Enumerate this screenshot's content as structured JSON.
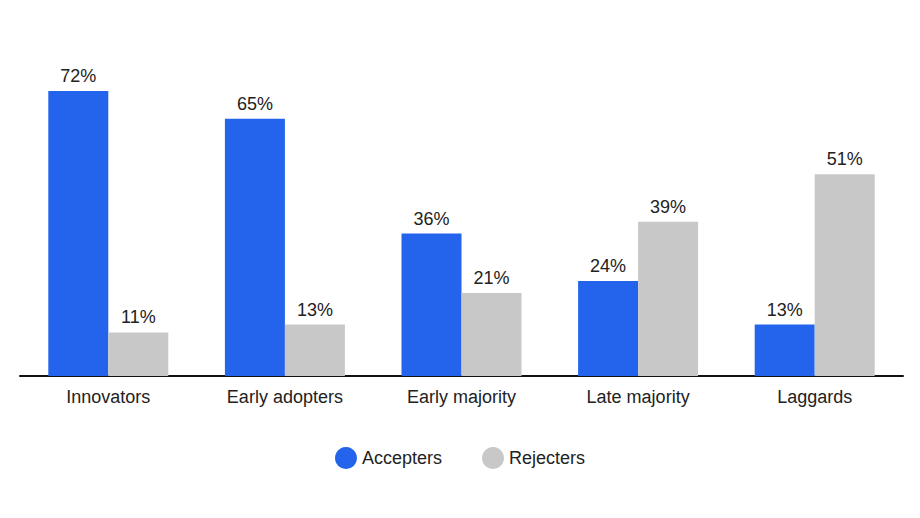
{
  "chart_data": {
    "type": "bar",
    "categories": [
      "Innovators",
      "Early adopters",
      "Early majority",
      "Late majority",
      "Laggards"
    ],
    "series": [
      {
        "name": "Accepters",
        "color": "#2463eb",
        "values": [
          72,
          65,
          36,
          24,
          13
        ],
        "value_labels": [
          "72%",
          "65%",
          "36%",
          "24%",
          "13%"
        ]
      },
      {
        "name": "Rejecters",
        "color": "#c8c8c8",
        "values": [
          11,
          13,
          21,
          39,
          51
        ],
        "value_labels": [
          "11%",
          "13%",
          "21%",
          "39%",
          "51%"
        ]
      }
    ],
    "data_labels": true,
    "legend": "bottom",
    "grid": false,
    "tick_labels": "x"
  }
}
